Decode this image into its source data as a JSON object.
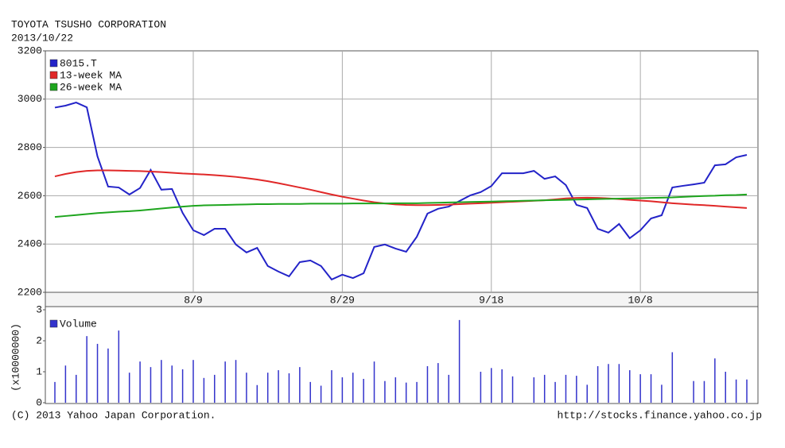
{
  "chart_data": [
    {
      "type": "line",
      "title": "TOYOTA TSUSHO CORPORATION",
      "subtitle": "2013/10/22",
      "categories": [
        null,
        null,
        null,
        null,
        null,
        null,
        null,
        null,
        null,
        null,
        null,
        null,
        null,
        "8/9",
        null,
        null,
        null,
        null,
        null,
        null,
        null,
        null,
        null,
        null,
        null,
        null,
        null,
        "8/29",
        null,
        null,
        null,
        null,
        null,
        null,
        null,
        null,
        null,
        null,
        null,
        null,
        null,
        "9/18",
        null,
        null,
        null,
        null,
        null,
        null,
        null,
        null,
        null,
        null,
        null,
        null,
        null,
        "10/8",
        null,
        null,
        null,
        null,
        null,
        null,
        null,
        null,
        null,
        null
      ],
      "series": [
        {
          "name": "8015.T",
          "color": "#2323c8",
          "values": [
            2965,
            2973,
            2986,
            2966,
            2763,
            2638,
            2634,
            2605,
            2632,
            2707,
            2625,
            2628,
            2529,
            2457,
            2437,
            2463,
            2463,
            2398,
            2365,
            2384,
            2309,
            2286,
            2266,
            2325,
            2332,
            2309,
            2253,
            2273,
            2259,
            2279,
            2388,
            2398,
            2381,
            2368,
            2430,
            2526,
            2546,
            2555,
            2578,
            2601,
            2615,
            2640,
            2693,
            2693,
            2693,
            2703,
            2670,
            2680,
            2644,
            2562,
            2549,
            2463,
            2447,
            2483,
            2424,
            2457,
            2506,
            2519,
            2634,
            2641,
            2647,
            2654,
            2726,
            2730,
            2759,
            2769
          ]
        },
        {
          "name": "13-week MA",
          "color": "#e02828",
          "values": [
            2680,
            2690,
            2698,
            2703,
            2705,
            2705,
            2704,
            2703,
            2702,
            2700,
            2698,
            2695,
            2692,
            2690,
            2688,
            2685,
            2682,
            2678,
            2673,
            2667,
            2660,
            2652,
            2643,
            2634,
            2625,
            2615,
            2605,
            2596,
            2588,
            2580,
            2573,
            2568,
            2564,
            2562,
            2561,
            2561,
            2562,
            2563,
            2565,
            2567,
            2569,
            2571,
            2573,
            2575,
            2577,
            2579,
            2581,
            2585,
            2589,
            2591,
            2592,
            2591,
            2589,
            2586,
            2583,
            2580,
            2577,
            2573,
            2569,
            2566,
            2563,
            2561,
            2558,
            2555,
            2552,
            2549
          ]
        },
        {
          "name": "26-week MA",
          "color": "#1ea51e",
          "values": [
            2512,
            2516,
            2520,
            2524,
            2528,
            2531,
            2534,
            2536,
            2539,
            2543,
            2547,
            2551,
            2555,
            2558,
            2560,
            2561,
            2562,
            2563,
            2564,
            2565,
            2565,
            2566,
            2566,
            2566,
            2567,
            2567,
            2567,
            2567,
            2568,
            2568,
            2568,
            2568,
            2569,
            2569,
            2569,
            2570,
            2571,
            2572,
            2573,
            2574,
            2575,
            2576,
            2577,
            2578,
            2579,
            2580,
            2581,
            2582,
            2583,
            2584,
            2585,
            2586,
            2587,
            2588,
            2589,
            2590,
            2591,
            2592,
            2593,
            2595,
            2597,
            2599,
            2600,
            2602,
            2603,
            2605
          ]
        }
      ],
      "ylim": [
        2200,
        3200
      ],
      "yticks": [
        2200,
        2400,
        2600,
        2800,
        3000,
        3200
      ],
      "grid": true,
      "legend": "top-left"
    },
    {
      "type": "bar",
      "y_label": "(x10000000)",
      "series": [
        {
          "name": "Volume",
          "color": "#3333cc",
          "values": [
            0.67,
            1.2,
            0.9,
            2.15,
            1.9,
            1.75,
            2.33,
            0.97,
            1.33,
            1.15,
            1.38,
            1.2,
            1.08,
            1.38,
            0.8,
            0.9,
            1.33,
            1.38,
            0.97,
            0.57,
            0.97,
            1.05,
            0.95,
            1.15,
            0.67,
            0.55,
            1.05,
            0.82,
            0.97,
            0.77,
            1.33,
            0.7,
            0.82,
            0.65,
            0.67,
            1.18,
            1.28,
            0.9,
            2.67,
            null,
            1.0,
            1.12,
            1.08,
            0.85,
            null,
            0.82,
            0.9,
            0.67,
            0.9,
            0.87,
            0.58,
            1.18,
            1.25,
            1.25,
            1.05,
            0.92,
            0.92,
            0.58,
            1.63,
            null,
            0.7,
            0.7,
            1.43,
            1.0,
            0.75,
            0.75
          ]
        }
      ],
      "ylim": [
        0,
        3
      ],
      "yticks": [
        0,
        1,
        2,
        3
      ],
      "legend": "top-left"
    }
  ],
  "footer": {
    "copyright": "(C) 2013 Yahoo Japan Corporation.",
    "url": "http://stocks.finance.yahoo.co.jp"
  }
}
